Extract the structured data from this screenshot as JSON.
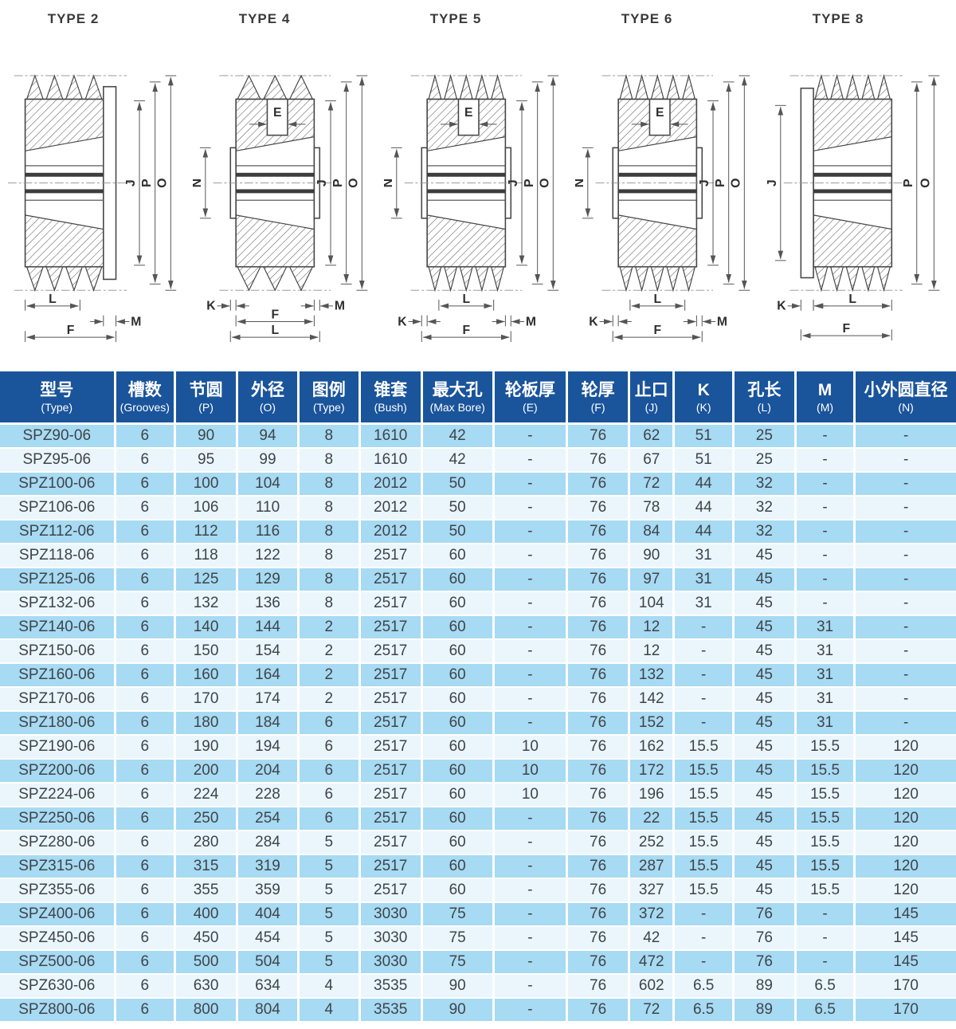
{
  "diagrams": [
    {
      "title": "TYPE 2",
      "labels": {
        "J": "J",
        "P": "P",
        "O": "O",
        "L": "L",
        "M": "M",
        "F": "F"
      }
    },
    {
      "title": "TYPE 4",
      "labels": {
        "E": "E",
        "N": "N",
        "J": "J",
        "P": "P",
        "O": "O",
        "K": "K",
        "M": "M",
        "F": "F",
        "L": "L"
      }
    },
    {
      "title": "TYPE 5",
      "labels": {
        "E": "E",
        "N": "N",
        "J": "J",
        "P": "P",
        "O": "O",
        "L": "L",
        "K": "K",
        "M": "M",
        "F": "F"
      }
    },
    {
      "title": "TYPE 6",
      "labels": {
        "E": "E",
        "N": "N",
        "J": "J",
        "P": "P",
        "O": "O",
        "L": "L",
        "K": "K",
        "M": "M",
        "F": "F"
      }
    },
    {
      "title": "TYPE 8",
      "labels": {
        "J": "J",
        "P": "P",
        "O": "O",
        "K": "K",
        "L": "L",
        "F": "F"
      }
    }
  ],
  "table": {
    "headers": [
      {
        "zh": "型号",
        "en": "(Type)"
      },
      {
        "zh": "槽数",
        "en": "(Grooves)"
      },
      {
        "zh": "节圆",
        "en": "(P)"
      },
      {
        "zh": "外径",
        "en": "(O)"
      },
      {
        "zh": "图例",
        "en": "(Type)"
      },
      {
        "zh": "锥套",
        "en": "(Bush)"
      },
      {
        "zh": "最大孔",
        "en": "(Max Bore)"
      },
      {
        "zh": "轮板厚",
        "en": "(E)"
      },
      {
        "zh": "轮厚",
        "en": "(F)"
      },
      {
        "zh": "止口",
        "en": "(J)"
      },
      {
        "zh": "K",
        "en": "(K)"
      },
      {
        "zh": "孔长",
        "en": "(L)"
      },
      {
        "zh": "M",
        "en": "(M)"
      },
      {
        "zh": "小外圆直径",
        "en": "(N)"
      }
    ],
    "rows": [
      [
        "SPZ90-06",
        "6",
        "90",
        "94",
        "8",
        "1610",
        "42",
        "-",
        "76",
        "62",
        "51",
        "25",
        "-",
        "-"
      ],
      [
        "SPZ95-06",
        "6",
        "95",
        "99",
        "8",
        "1610",
        "42",
        "-",
        "76",
        "67",
        "51",
        "25",
        "-",
        "-"
      ],
      [
        "SPZ100-06",
        "6",
        "100",
        "104",
        "8",
        "2012",
        "50",
        "-",
        "76",
        "72",
        "44",
        "32",
        "-",
        "-"
      ],
      [
        "SPZ106-06",
        "6",
        "106",
        "110",
        "8",
        "2012",
        "50",
        "-",
        "76",
        "78",
        "44",
        "32",
        "-",
        "-"
      ],
      [
        "SPZ112-06",
        "6",
        "112",
        "116",
        "8",
        "2012",
        "50",
        "-",
        "76",
        "84",
        "44",
        "32",
        "-",
        "-"
      ],
      [
        "SPZ118-06",
        "6",
        "118",
        "122",
        "8",
        "2517",
        "60",
        "-",
        "76",
        "90",
        "31",
        "45",
        "-",
        "-"
      ],
      [
        "SPZ125-06",
        "6",
        "125",
        "129",
        "8",
        "2517",
        "60",
        "-",
        "76",
        "97",
        "31",
        "45",
        "-",
        "-"
      ],
      [
        "SPZ132-06",
        "6",
        "132",
        "136",
        "8",
        "2517",
        "60",
        "-",
        "76",
        "104",
        "31",
        "45",
        "-",
        "-"
      ],
      [
        "SPZ140-06",
        "6",
        "140",
        "144",
        "2",
        "2517",
        "60",
        "-",
        "76",
        "12",
        "-",
        "45",
        "31",
        "-"
      ],
      [
        "SPZ150-06",
        "6",
        "150",
        "154",
        "2",
        "2517",
        "60",
        "-",
        "76",
        "12",
        "-",
        "45",
        "31",
        "-"
      ],
      [
        "SPZ160-06",
        "6",
        "160",
        "164",
        "2",
        "2517",
        "60",
        "-",
        "76",
        "132",
        "-",
        "45",
        "31",
        "-"
      ],
      [
        "SPZ170-06",
        "6",
        "170",
        "174",
        "2",
        "2517",
        "60",
        "-",
        "76",
        "142",
        "-",
        "45",
        "31",
        "-"
      ],
      [
        "SPZ180-06",
        "6",
        "180",
        "184",
        "6",
        "2517",
        "60",
        "-",
        "76",
        "152",
        "-",
        "45",
        "31",
        "-"
      ],
      [
        "SPZ190-06",
        "6",
        "190",
        "194",
        "6",
        "2517",
        "60",
        "10",
        "76",
        "162",
        "15.5",
        "45",
        "15.5",
        "120"
      ],
      [
        "SPZ200-06",
        "6",
        "200",
        "204",
        "6",
        "2517",
        "60",
        "10",
        "76",
        "172",
        "15.5",
        "45",
        "15.5",
        "120"
      ],
      [
        "SPZ224-06",
        "6",
        "224",
        "228",
        "6",
        "2517",
        "60",
        "10",
        "76",
        "196",
        "15.5",
        "45",
        "15.5",
        "120"
      ],
      [
        "SPZ250-06",
        "6",
        "250",
        "254",
        "6",
        "2517",
        "60",
        "-",
        "76",
        "22",
        "15.5",
        "45",
        "15.5",
        "120"
      ],
      [
        "SPZ280-06",
        "6",
        "280",
        "284",
        "5",
        "2517",
        "60",
        "-",
        "76",
        "252",
        "15.5",
        "45",
        "15.5",
        "120"
      ],
      [
        "SPZ315-06",
        "6",
        "315",
        "319",
        "5",
        "2517",
        "60",
        "-",
        "76",
        "287",
        "15.5",
        "45",
        "15.5",
        "120"
      ],
      [
        "SPZ355-06",
        "6",
        "355",
        "359",
        "5",
        "2517",
        "60",
        "-",
        "76",
        "327",
        "15.5",
        "45",
        "15.5",
        "120"
      ],
      [
        "SPZ400-06",
        "6",
        "400",
        "404",
        "5",
        "3030",
        "75",
        "-",
        "76",
        "372",
        "-",
        "76",
        "-",
        "145"
      ],
      [
        "SPZ450-06",
        "6",
        "450",
        "454",
        "5",
        "3030",
        "75",
        "-",
        "76",
        "42",
        "-",
        "76",
        "-",
        "145"
      ],
      [
        "SPZ500-06",
        "6",
        "500",
        "504",
        "5",
        "3030",
        "75",
        "-",
        "76",
        "472",
        "-",
        "76",
        "-",
        "145"
      ],
      [
        "SPZ630-06",
        "6",
        "630",
        "634",
        "4",
        "3535",
        "90",
        "-",
        "76",
        "602",
        "6.5",
        "89",
        "6.5",
        "170"
      ],
      [
        "SPZ800-06",
        "6",
        "800",
        "804",
        "4",
        "3535",
        "90",
        "-",
        "76",
        "72",
        "6.5",
        "89",
        "6.5",
        "170"
      ]
    ]
  }
}
